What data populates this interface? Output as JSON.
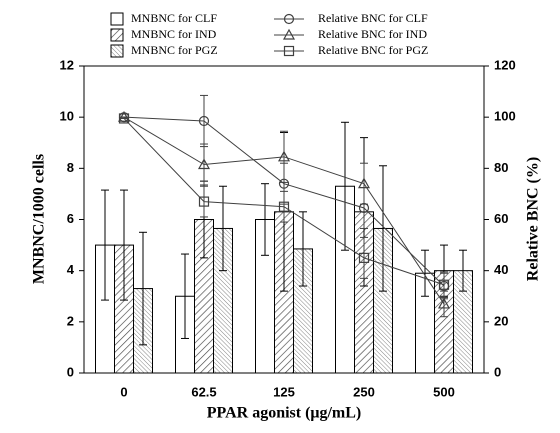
{
  "chart_data": {
    "type": "bar-line",
    "x_label": "PPAR agonist (μg/mL)",
    "y_label": "MNBNC/1000 cells",
    "y2_label": "Relative BNC (%)",
    "categories": [
      "0",
      "62.5",
      "125",
      "250",
      "500"
    ],
    "ylim": [
      0,
      12
    ],
    "yticks": [
      0,
      2,
      4,
      6,
      8,
      10,
      12
    ],
    "y2lim": [
      0,
      120
    ],
    "y2ticks": [
      0,
      20,
      40,
      60,
      80,
      100,
      120
    ],
    "series": [
      {
        "name": "MNBNC for CLF",
        "kind": "bar",
        "fill": "white",
        "color": "#000000",
        "values": [
          5.0,
          3.0,
          6.0,
          7.3,
          3.9
        ],
        "errors": [
          2.15,
          1.65,
          1.4,
          2.5,
          0.9
        ]
      },
      {
        "name": "MNBNC for IND",
        "kind": "bar",
        "fill": "hatch",
        "color": "#000000",
        "values": [
          5.0,
          6.0,
          6.3,
          6.3,
          4.0
        ],
        "errors": [
          2.15,
          1.5,
          3.1,
          2.9,
          1.0
        ]
      },
      {
        "name": "MNBNC for PGZ",
        "kind": "bar",
        "fill": "fine-hatch",
        "color": "#000000",
        "values": [
          3.3,
          5.65,
          4.85,
          5.65,
          4.0
        ],
        "errors": [
          2.2,
          1.65,
          1.45,
          2.45,
          0.8
        ]
      },
      {
        "name": "Relative BNC for CLF",
        "kind": "line",
        "axis": "y2",
        "marker": "circle",
        "color": "#404040",
        "values": [
          100,
          98.5,
          74,
          64.5,
          34
        ],
        "errors": [
          0,
          10,
          8,
          8,
          5
        ]
      },
      {
        "name": "Relative BNC for IND",
        "kind": "line",
        "axis": "y2",
        "marker": "triangle",
        "color": "#404040",
        "values": [
          100,
          81.5,
          84.5,
          74,
          27
        ],
        "errors": [
          0,
          8,
          10,
          8,
          5
        ]
      },
      {
        "name": "Relative BNC for PGZ",
        "kind": "line",
        "axis": "y2",
        "marker": "square",
        "color": "#404040",
        "values": [
          99.5,
          67,
          65,
          45,
          34.5
        ],
        "errors": [
          0,
          6,
          6,
          8,
          5
        ]
      }
    ]
  }
}
